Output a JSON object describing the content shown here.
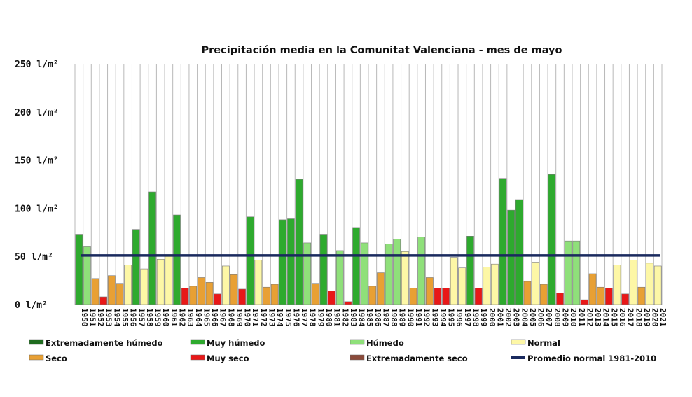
{
  "chart_data": {
    "type": "bar",
    "title": "Precipitación media en la Comunitat Valenciana - mes de mayo",
    "unit": "l/m²",
    "ylim": [
      0,
      250
    ],
    "yticks": [
      {
        "value": 250,
        "label": "250 l/m²"
      },
      {
        "value": 200,
        "label": "200 l/m²"
      },
      {
        "value": 150,
        "label": "150 l/m²"
      },
      {
        "value": 100,
        "label": "100 l/m²"
      },
      {
        "value": 50,
        "label": "50 l/m²"
      },
      {
        "value": 0,
        "label": "0 l/m²"
      }
    ],
    "grid": "vertical",
    "reference_line": {
      "name": "Promedio normal 1981-2010",
      "value": 51,
      "color": "#1a2a5e"
    },
    "categories_legend": [
      {
        "key": "EH",
        "name": "Extremadamente húmedo",
        "color": "#1f6b1f"
      },
      {
        "key": "MH",
        "name": "Muy húmedo",
        "color": "#2eaa2e"
      },
      {
        "key": "H",
        "name": "Húmedo",
        "color": "#8fe07a"
      },
      {
        "key": "N",
        "name": "Normal",
        "color": "#fdf7a6"
      },
      {
        "key": "S",
        "name": "Seco",
        "color": "#e8a034"
      },
      {
        "key": "MS",
        "name": "Muy seco",
        "color": "#e81818"
      },
      {
        "key": "ES",
        "name": "Extremadamente seco",
        "color": "#8a4a3a"
      }
    ],
    "data": [
      {
        "year": "1950",
        "value": 73,
        "category": "MH"
      },
      {
        "year": "1951",
        "value": 60,
        "category": "H"
      },
      {
        "year": "1952",
        "value": 27,
        "category": "S"
      },
      {
        "year": "1953",
        "value": 8,
        "category": "MS"
      },
      {
        "year": "1954",
        "value": 30,
        "category": "S"
      },
      {
        "year": "1955",
        "value": 22,
        "category": "S"
      },
      {
        "year": "1956",
        "value": 41,
        "category": "N"
      },
      {
        "year": "1957",
        "value": 78,
        "category": "MH"
      },
      {
        "year": "1958",
        "value": 37,
        "category": "N"
      },
      {
        "year": "1959",
        "value": 117,
        "category": "MH"
      },
      {
        "year": "1960",
        "value": 47,
        "category": "N"
      },
      {
        "year": "1961",
        "value": 50,
        "category": "N"
      },
      {
        "year": "1962",
        "value": 93,
        "category": "MH"
      },
      {
        "year": "1963",
        "value": 17,
        "category": "MS"
      },
      {
        "year": "1964",
        "value": 19,
        "category": "S"
      },
      {
        "year": "1965",
        "value": 28,
        "category": "S"
      },
      {
        "year": "1966",
        "value": 23,
        "category": "S"
      },
      {
        "year": "1967",
        "value": 11,
        "category": "MS"
      },
      {
        "year": "1968",
        "value": 40,
        "category": "N"
      },
      {
        "year": "1969",
        "value": 31,
        "category": "S"
      },
      {
        "year": "1970",
        "value": 16,
        "category": "MS"
      },
      {
        "year": "1971",
        "value": 91,
        "category": "MH"
      },
      {
        "year": "1972",
        "value": 46,
        "category": "N"
      },
      {
        "year": "1973",
        "value": 18,
        "category": "S"
      },
      {
        "year": "1974",
        "value": 21,
        "category": "S"
      },
      {
        "year": "1975",
        "value": 88,
        "category": "MH"
      },
      {
        "year": "1976",
        "value": 89,
        "category": "MH"
      },
      {
        "year": "1977",
        "value": 130,
        "category": "MH"
      },
      {
        "year": "1978",
        "value": 64,
        "category": "H"
      },
      {
        "year": "1979",
        "value": 22,
        "category": "S"
      },
      {
        "year": "1980",
        "value": 73,
        "category": "MH"
      },
      {
        "year": "1981",
        "value": 14,
        "category": "MS"
      },
      {
        "year": "1982",
        "value": 56,
        "category": "H"
      },
      {
        "year": "1983",
        "value": 3,
        "category": "MS"
      },
      {
        "year": "1984",
        "value": 80,
        "category": "MH"
      },
      {
        "year": "1985",
        "value": 64,
        "category": "H"
      },
      {
        "year": "1986",
        "value": 19,
        "category": "S"
      },
      {
        "year": "1987",
        "value": 33,
        "category": "S"
      },
      {
        "year": "1988",
        "value": 63,
        "category": "H"
      },
      {
        "year": "1989",
        "value": 68,
        "category": "H"
      },
      {
        "year": "1990",
        "value": 55,
        "category": "N"
      },
      {
        "year": "1991",
        "value": 17,
        "category": "S"
      },
      {
        "year": "1992",
        "value": 70,
        "category": "H"
      },
      {
        "year": "1993",
        "value": 28,
        "category": "S"
      },
      {
        "year": "1994",
        "value": 17,
        "category": "MS"
      },
      {
        "year": "1995",
        "value": 17,
        "category": "MS"
      },
      {
        "year": "1996",
        "value": 49,
        "category": "N"
      },
      {
        "year": "1997",
        "value": 38,
        "category": "N"
      },
      {
        "year": "1998",
        "value": 71,
        "category": "MH"
      },
      {
        "year": "1999",
        "value": 17,
        "category": "MS"
      },
      {
        "year": "2000",
        "value": 39,
        "category": "N"
      },
      {
        "year": "2001",
        "value": 42,
        "category": "N"
      },
      {
        "year": "2002",
        "value": 131,
        "category": "MH"
      },
      {
        "year": "2003",
        "value": 98,
        "category": "MH"
      },
      {
        "year": "2004",
        "value": 109,
        "category": "MH"
      },
      {
        "year": "2005",
        "value": 24,
        "category": "S"
      },
      {
        "year": "2006",
        "value": 44,
        "category": "N"
      },
      {
        "year": "2007",
        "value": 21,
        "category": "S"
      },
      {
        "year": "2008",
        "value": 135,
        "category": "MH"
      },
      {
        "year": "2009",
        "value": 12,
        "category": "MS"
      },
      {
        "year": "2010",
        "value": 66,
        "category": "H"
      },
      {
        "year": "2011",
        "value": 66,
        "category": "H"
      },
      {
        "year": "2012",
        "value": 5,
        "category": "MS"
      },
      {
        "year": "2013",
        "value": 32,
        "category": "S"
      },
      {
        "year": "2014",
        "value": 18,
        "category": "S"
      },
      {
        "year": "2015",
        "value": 17,
        "category": "MS"
      },
      {
        "year": "2016",
        "value": 41,
        "category": "N"
      },
      {
        "year": "2017",
        "value": 11,
        "category": "MS"
      },
      {
        "year": "2018",
        "value": 46,
        "category": "N"
      },
      {
        "year": "2019",
        "value": 18,
        "category": "S"
      },
      {
        "year": "2020",
        "value": 43,
        "category": "N"
      },
      {
        "year": "2021",
        "value": 40,
        "category": "N"
      }
    ],
    "legend_placement": "bottom"
  }
}
